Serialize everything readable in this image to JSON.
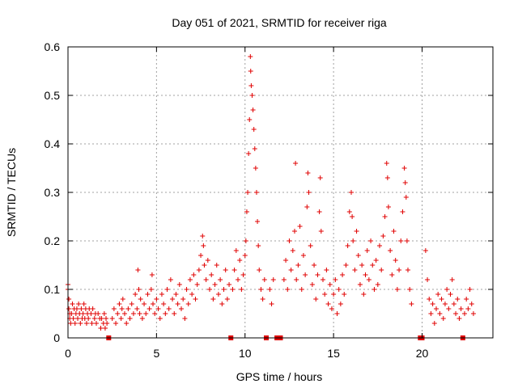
{
  "chart_data": {
    "type": "scatter",
    "marker": "plus",
    "title": "Day 051 of 2021, SRMTID for receiver riga",
    "xlabel": "GPS time / hours",
    "ylabel": "SRMTID / TECUs",
    "xlim": [
      0,
      24
    ],
    "ylim": [
      0,
      0.6
    ],
    "xticks": [
      0,
      5,
      10,
      15,
      20
    ],
    "xtick_labels": [
      "0",
      "5",
      "10",
      "15",
      "20"
    ],
    "yticks": [
      0,
      0.1,
      0.2,
      0.3,
      0.4,
      0.5,
      0.6
    ],
    "ytick_labels": [
      "0",
      "0.1",
      "0.2",
      "0.3",
      "0.4",
      "0.5",
      "0.6"
    ],
    "grid": true,
    "color": "#e00000",
    "zero_markers_x": [
      2.3,
      9.2,
      11.2,
      11.8,
      12.0,
      19.9,
      20.0,
      22.3
    ],
    "series": [
      {
        "name": "SRMTID",
        "points": [
          [
            0.0,
            0.11
          ],
          [
            0.0,
            0.1
          ],
          [
            0.05,
            0.08
          ],
          [
            0.05,
            0.06
          ],
          [
            0.1,
            0.05
          ],
          [
            0.1,
            0.04
          ],
          [
            0.15,
            0.03
          ],
          [
            0.2,
            0.05
          ],
          [
            0.25,
            0.07
          ],
          [
            0.3,
            0.04
          ],
          [
            0.35,
            0.06
          ],
          [
            0.4,
            0.03
          ],
          [
            0.45,
            0.05
          ],
          [
            0.5,
            0.06
          ],
          [
            0.55,
            0.04
          ],
          [
            0.6,
            0.07
          ],
          [
            0.65,
            0.05
          ],
          [
            0.7,
            0.03
          ],
          [
            0.75,
            0.06
          ],
          [
            0.8,
            0.04
          ],
          [
            0.85,
            0.05
          ],
          [
            0.9,
            0.07
          ],
          [
            0.95,
            0.04
          ],
          [
            1.0,
            0.06
          ],
          [
            1.05,
            0.03
          ],
          [
            1.1,
            0.05
          ],
          [
            1.15,
            0.04
          ],
          [
            1.2,
            0.06
          ],
          [
            1.3,
            0.05
          ],
          [
            1.35,
            0.03
          ],
          [
            1.4,
            0.06
          ],
          [
            1.5,
            0.04
          ],
          [
            1.55,
            0.05
          ],
          [
            1.6,
            0.03
          ],
          [
            1.7,
            0.05
          ],
          [
            1.8,
            0.04
          ],
          [
            1.85,
            0.02
          ],
          [
            1.9,
            0.04
          ],
          [
            2.0,
            0.03
          ],
          [
            2.05,
            0.05
          ],
          [
            2.1,
            0.02
          ],
          [
            2.15,
            0.04
          ],
          [
            2.2,
            0.03
          ],
          [
            2.5,
            0.04
          ],
          [
            2.6,
            0.06
          ],
          [
            2.7,
            0.03
          ],
          [
            2.8,
            0.05
          ],
          [
            2.9,
            0.07
          ],
          [
            3.0,
            0.04
          ],
          [
            3.05,
            0.06
          ],
          [
            3.1,
            0.08
          ],
          [
            3.2,
            0.05
          ],
          [
            3.3,
            0.03
          ],
          [
            3.4,
            0.06
          ],
          [
            3.5,
            0.04
          ],
          [
            3.6,
            0.07
          ],
          [
            3.7,
            0.05
          ],
          [
            3.8,
            0.09
          ],
          [
            3.9,
            0.06
          ],
          [
            3.95,
            0.14
          ],
          [
            4.0,
            0.1
          ],
          [
            4.05,
            0.05
          ],
          [
            4.1,
            0.08
          ],
          [
            4.2,
            0.04
          ],
          [
            4.3,
            0.07
          ],
          [
            4.4,
            0.05
          ],
          [
            4.5,
            0.09
          ],
          [
            4.6,
            0.06
          ],
          [
            4.7,
            0.1
          ],
          [
            4.75,
            0.13
          ],
          [
            4.8,
            0.07
          ],
          [
            4.9,
            0.05
          ],
          [
            5.0,
            0.08
          ],
          [
            5.1,
            0.06
          ],
          [
            5.2,
            0.04
          ],
          [
            5.3,
            0.09
          ],
          [
            5.4,
            0.07
          ],
          [
            5.5,
            0.05
          ],
          [
            5.6,
            0.1
          ],
          [
            5.7,
            0.06
          ],
          [
            5.8,
            0.12
          ],
          [
            5.9,
            0.08
          ],
          [
            6.0,
            0.05
          ],
          [
            6.1,
            0.09
          ],
          [
            6.2,
            0.07
          ],
          [
            6.3,
            0.11
          ],
          [
            6.4,
            0.06
          ],
          [
            6.5,
            0.08
          ],
          [
            6.6,
            0.04
          ],
          [
            6.7,
            0.1
          ],
          [
            6.8,
            0.07
          ],
          [
            6.9,
            0.12
          ],
          [
            7.0,
            0.09
          ],
          [
            7.1,
            0.13
          ],
          [
            7.2,
            0.08
          ],
          [
            7.3,
            0.11
          ],
          [
            7.4,
            0.14
          ],
          [
            7.5,
            0.17
          ],
          [
            7.6,
            0.21
          ],
          [
            7.65,
            0.19
          ],
          [
            7.7,
            0.15
          ],
          [
            7.8,
            0.12
          ],
          [
            7.9,
            0.16
          ],
          [
            8.0,
            0.1
          ],
          [
            8.1,
            0.13
          ],
          [
            8.2,
            0.08
          ],
          [
            8.3,
            0.11
          ],
          [
            8.4,
            0.15
          ],
          [
            8.5,
            0.09
          ],
          [
            8.6,
            0.12
          ],
          [
            8.7,
            0.07
          ],
          [
            8.8,
            0.1
          ],
          [
            8.9,
            0.14
          ],
          [
            9.0,
            0.08
          ],
          [
            9.1,
            0.11
          ],
          [
            9.3,
            0.1
          ],
          [
            9.4,
            0.14
          ],
          [
            9.5,
            0.18
          ],
          [
            9.6,
            0.12
          ],
          [
            9.7,
            0.16
          ],
          [
            9.8,
            0.1
          ],
          [
            9.9,
            0.13
          ],
          [
            10.0,
            0.17
          ],
          [
            10.05,
            0.2
          ],
          [
            10.1,
            0.26
          ],
          [
            10.15,
            0.3
          ],
          [
            10.2,
            0.38
          ],
          [
            10.25,
            0.45
          ],
          [
            10.3,
            0.58
          ],
          [
            10.32,
            0.55
          ],
          [
            10.35,
            0.52
          ],
          [
            10.4,
            0.5
          ],
          [
            10.45,
            0.47
          ],
          [
            10.5,
            0.43
          ],
          [
            10.55,
            0.39
          ],
          [
            10.6,
            0.35
          ],
          [
            10.65,
            0.3
          ],
          [
            10.7,
            0.24
          ],
          [
            10.75,
            0.19
          ],
          [
            10.8,
            0.14
          ],
          [
            10.9,
            0.1
          ],
          [
            11.0,
            0.08
          ],
          [
            11.1,
            0.12
          ],
          [
            11.4,
            0.1
          ],
          [
            11.5,
            0.07
          ],
          [
            11.6,
            0.12
          ],
          [
            12.2,
            0.12
          ],
          [
            12.3,
            0.16
          ],
          [
            12.4,
            0.1
          ],
          [
            12.5,
            0.2
          ],
          [
            12.6,
            0.14
          ],
          [
            12.7,
            0.18
          ],
          [
            12.8,
            0.22
          ],
          [
            12.85,
            0.36
          ],
          [
            12.9,
            0.12
          ],
          [
            13.0,
            0.15
          ],
          [
            13.1,
            0.23
          ],
          [
            13.2,
            0.1
          ],
          [
            13.3,
            0.17
          ],
          [
            13.4,
            0.13
          ],
          [
            13.5,
            0.27
          ],
          [
            13.55,
            0.34
          ],
          [
            13.6,
            0.3
          ],
          [
            13.7,
            0.19
          ],
          [
            13.8,
            0.11
          ],
          [
            13.9,
            0.15
          ],
          [
            14.0,
            0.08
          ],
          [
            14.1,
            0.13
          ],
          [
            14.2,
            0.26
          ],
          [
            14.25,
            0.33
          ],
          [
            14.3,
            0.22
          ],
          [
            14.4,
            0.12
          ],
          [
            14.5,
            0.09
          ],
          [
            14.6,
            0.14
          ],
          [
            14.7,
            0.07
          ],
          [
            14.8,
            0.11
          ],
          [
            14.9,
            0.06
          ],
          [
            15.0,
            0.09
          ],
          [
            15.1,
            0.12
          ],
          [
            15.2,
            0.05
          ],
          [
            15.3,
            0.1
          ],
          [
            15.4,
            0.07
          ],
          [
            15.5,
            0.13
          ],
          [
            15.6,
            0.09
          ],
          [
            15.7,
            0.15
          ],
          [
            15.8,
            0.19
          ],
          [
            15.9,
            0.26
          ],
          [
            16.0,
            0.3
          ],
          [
            16.05,
            0.25
          ],
          [
            16.1,
            0.2
          ],
          [
            16.2,
            0.14
          ],
          [
            16.3,
            0.22
          ],
          [
            16.4,
            0.17
          ],
          [
            16.5,
            0.11
          ],
          [
            16.6,
            0.15
          ],
          [
            16.7,
            0.09
          ],
          [
            16.8,
            0.13
          ],
          [
            16.9,
            0.18
          ],
          [
            17.0,
            0.12
          ],
          [
            17.1,
            0.2
          ],
          [
            17.2,
            0.15
          ],
          [
            17.3,
            0.1
          ],
          [
            17.4,
            0.16
          ],
          [
            17.5,
            0.11
          ],
          [
            17.6,
            0.19
          ],
          [
            17.7,
            0.14
          ],
          [
            17.8,
            0.21
          ],
          [
            17.9,
            0.25
          ],
          [
            18.0,
            0.36
          ],
          [
            18.05,
            0.33
          ],
          [
            18.1,
            0.27
          ],
          [
            18.2,
            0.18
          ],
          [
            18.3,
            0.13
          ],
          [
            18.4,
            0.22
          ],
          [
            18.5,
            0.16
          ],
          [
            18.6,
            0.1
          ],
          [
            18.7,
            0.14
          ],
          [
            18.8,
            0.2
          ],
          [
            18.9,
            0.26
          ],
          [
            19.0,
            0.35
          ],
          [
            19.05,
            0.32
          ],
          [
            19.1,
            0.29
          ],
          [
            19.15,
            0.2
          ],
          [
            19.2,
            0.14
          ],
          [
            19.3,
            0.1
          ],
          [
            19.4,
            0.07
          ],
          [
            20.2,
            0.18
          ],
          [
            20.3,
            0.12
          ],
          [
            20.4,
            0.08
          ],
          [
            20.5,
            0.05
          ],
          [
            20.6,
            0.07
          ],
          [
            20.7,
            0.03
          ],
          [
            20.8,
            0.06
          ],
          [
            20.9,
            0.09
          ],
          [
            21.0,
            0.05
          ],
          [
            21.1,
            0.08
          ],
          [
            21.2,
            0.04
          ],
          [
            21.3,
            0.07
          ],
          [
            21.4,
            0.1
          ],
          [
            21.5,
            0.06
          ],
          [
            21.6,
            0.09
          ],
          [
            21.7,
            0.12
          ],
          [
            21.8,
            0.07
          ],
          [
            21.9,
            0.05
          ],
          [
            22.0,
            0.08
          ],
          [
            22.1,
            0.04
          ],
          [
            22.2,
            0.06
          ],
          [
            22.4,
            0.05
          ],
          [
            22.5,
            0.08
          ],
          [
            22.6,
            0.06
          ],
          [
            22.7,
            0.1
          ],
          [
            22.8,
            0.07
          ],
          [
            22.9,
            0.05
          ]
        ]
      }
    ]
  }
}
